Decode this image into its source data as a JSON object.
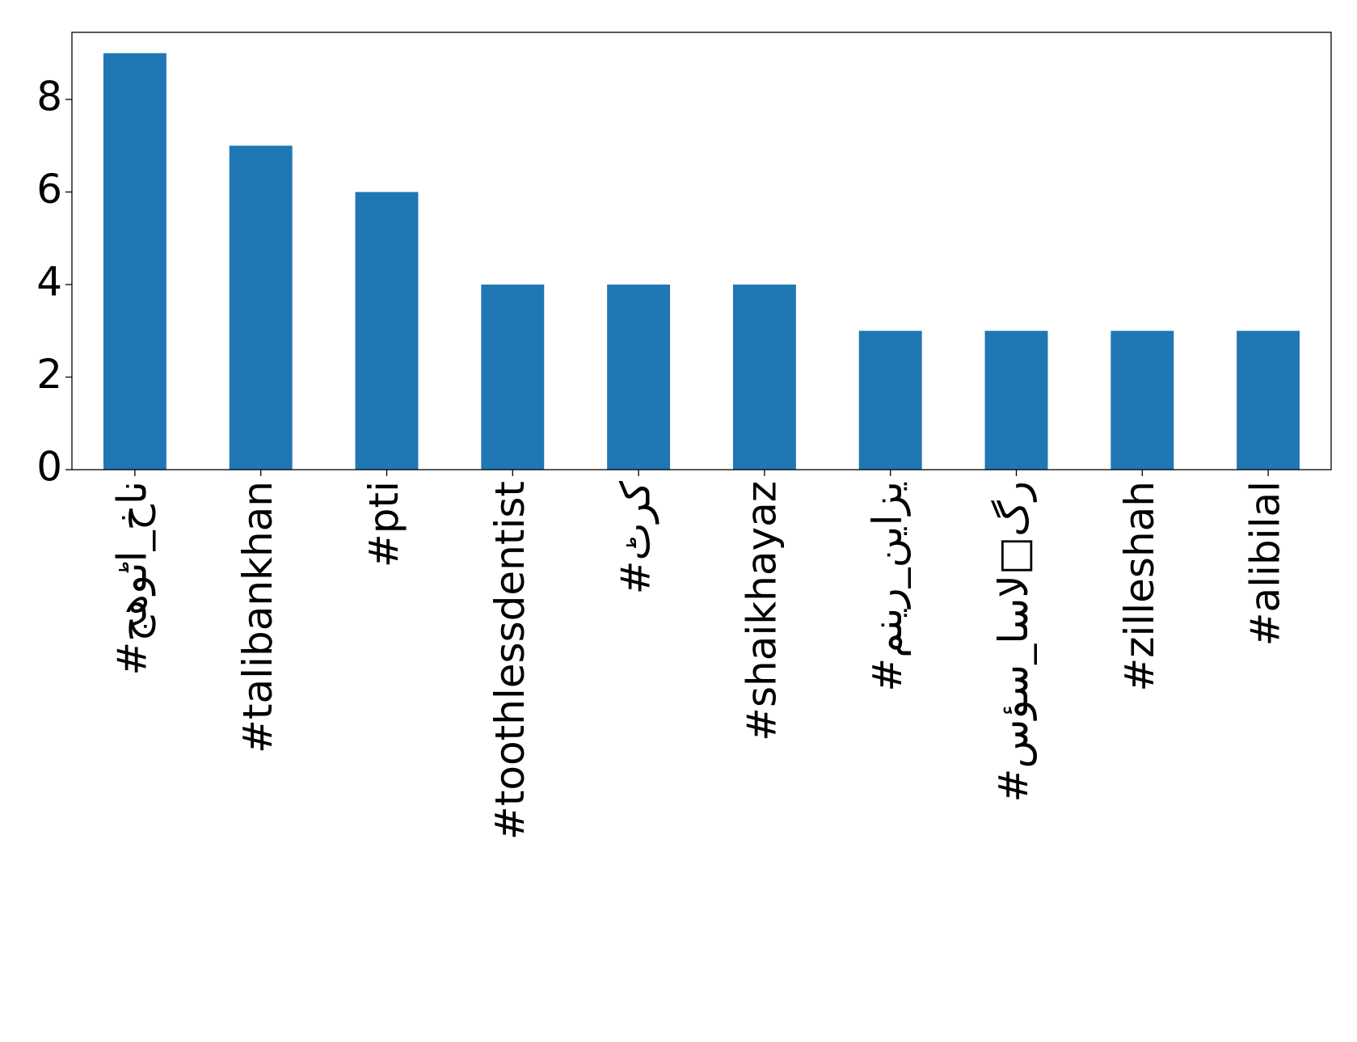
{
  "chart_data": {
    "type": "bar",
    "categories": [
      "#جھوٹا_خان",
      "#talibankhan",
      "#pti",
      "#toothlessdentist",
      "#ٹرک",
      "#shaikhayaz",
      "#منیر_نیازی",
      "#سؤس_اسال□گر",
      "#zilleshah",
      "#alibilal"
    ],
    "values": [
      9,
      7,
      6,
      4,
      4,
      4,
      3,
      3,
      3,
      3
    ],
    "color": "#1f77b4",
    "ylim": [
      0,
      9.45
    ],
    "yticks": [
      0,
      2,
      4,
      6,
      8
    ],
    "grid": false
  }
}
